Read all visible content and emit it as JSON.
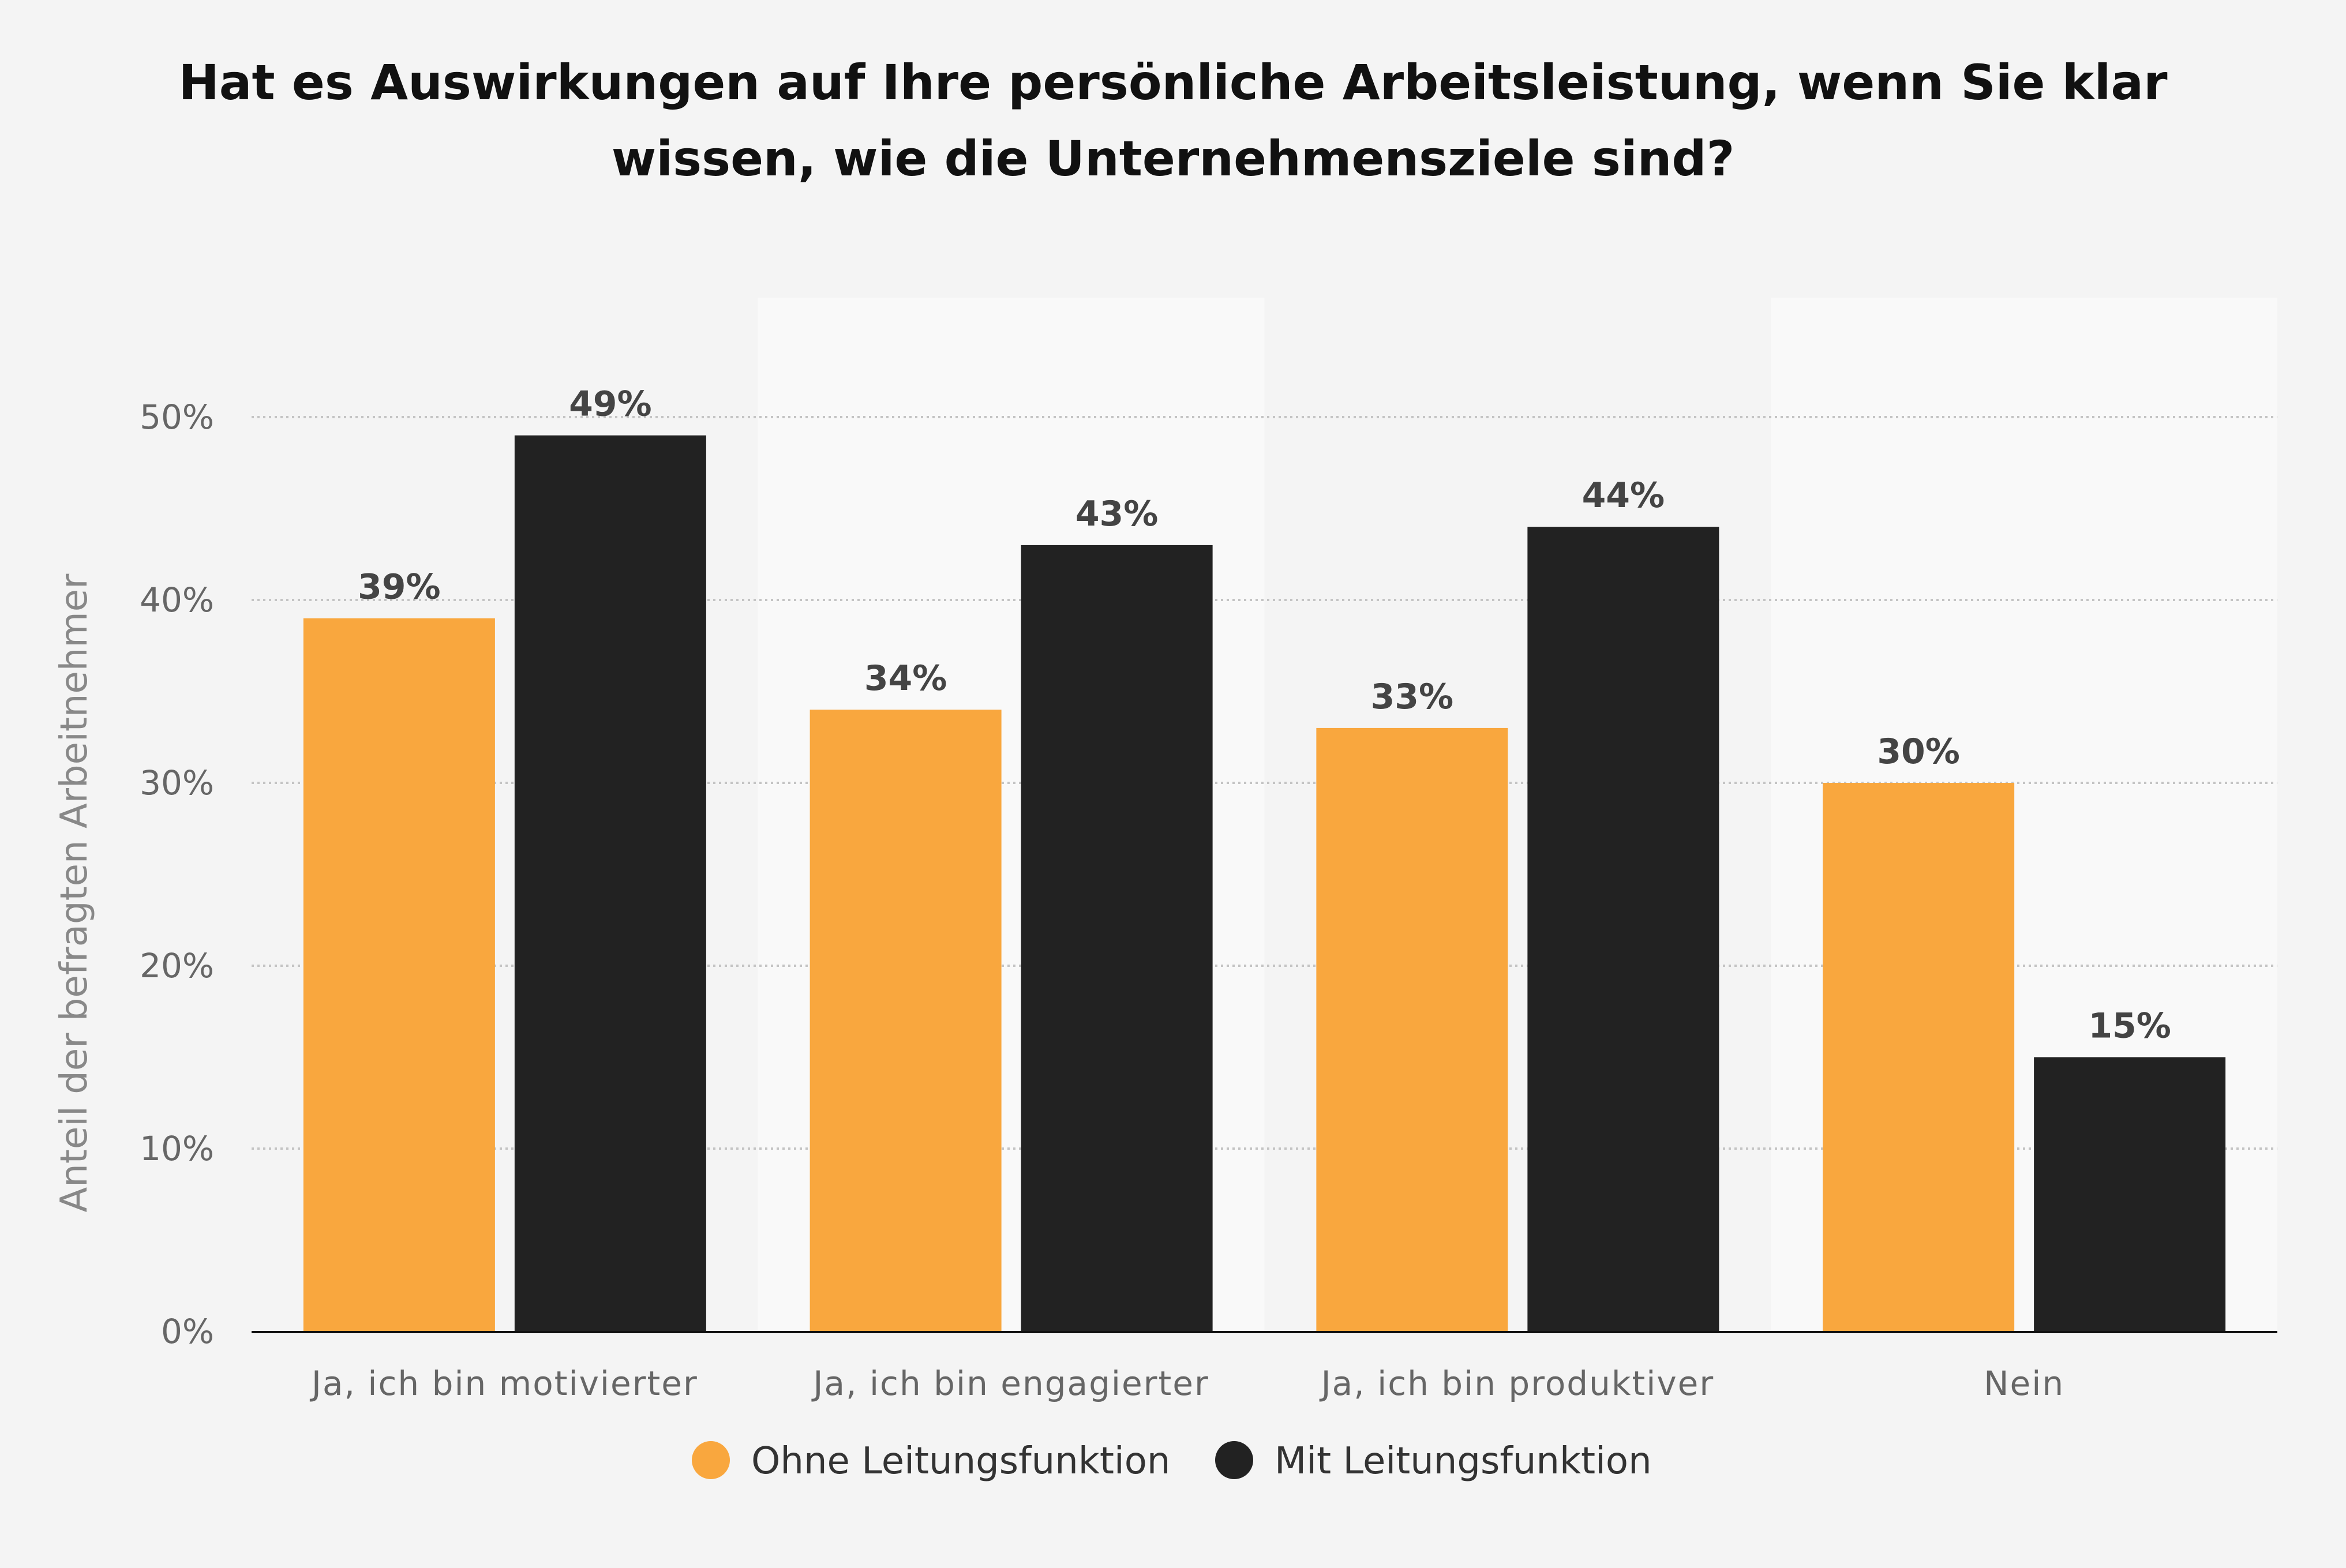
{
  "chart_data": {
    "type": "bar",
    "title_lines": [
      "Hat es Auswirkungen auf Ihre persönliche Arbeitsleistung, wenn Sie klar",
      "wissen, wie die Unternehmensziele sind?"
    ],
    "categories": [
      "Ja, ich bin motivierter",
      "Ja, ich bin engagierter",
      "Ja, ich bin produktiver",
      "Nein"
    ],
    "series": [
      {
        "name": "Ohne Leitungsfunktion",
        "color": "#f9a73e",
        "values": [
          39,
          34,
          33,
          30
        ]
      },
      {
        "name": "Mit Leitungsfunktion",
        "color": "#222222",
        "values": [
          49,
          43,
          44,
          15
        ]
      }
    ],
    "value_suffix": "%",
    "ylabel": "Anteil der befragten Arbeitnehmer",
    "xlabel": "",
    "ylim": [
      0,
      50
    ],
    "yticks": [
      "0%",
      "10%",
      "20%",
      "30%",
      "40%",
      "50%"
    ],
    "grid": true,
    "legend_position": "bottom"
  }
}
